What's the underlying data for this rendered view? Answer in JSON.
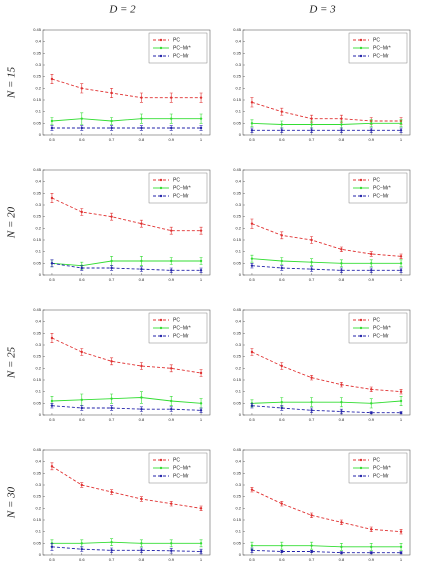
{
  "header": {
    "columns": [
      "D = 2",
      "D = 3"
    ],
    "rows": [
      "N = 15",
      "N = 20",
      "N = 25",
      "N = 30"
    ]
  },
  "chart_data": [
    {
      "type": "line",
      "legend": "upper right",
      "xlim": [
        0.47,
        1.03
      ],
      "ylim": [
        0,
        0.45
      ],
      "xticks": [
        0.5,
        0.6,
        0.7,
        0.8,
        0.9,
        1
      ],
      "yticks": [
        0,
        0.05,
        0.1,
        0.15,
        0.2,
        0.25,
        0.3,
        0.35,
        0.4,
        0.45
      ],
      "x": [
        0.5,
        0.6,
        0.7,
        0.8,
        0.9,
        1
      ],
      "series": [
        {
          "name": "PC",
          "color": "#e03030",
          "linestyle": "dashed",
          "values": [
            0.24,
            0.2,
            0.18,
            0.16,
            0.16,
            0.16
          ],
          "errors": [
            0.02,
            0.02,
            0.02,
            0.02,
            0.02,
            0.02
          ]
        },
        {
          "name": "PC−Mr*",
          "color": "#33dd33",
          "linestyle": "solid",
          "values": [
            0.06,
            0.07,
            0.06,
            0.07,
            0.07,
            0.07
          ],
          "errors": [
            0.015,
            0.025,
            0.015,
            0.02,
            0.02,
            0.02
          ]
        },
        {
          "name": "PC−Mr",
          "color": "#2222aa",
          "linestyle": "dashed",
          "values": [
            0.03,
            0.03,
            0.03,
            0.03,
            0.03,
            0.03
          ],
          "errors": [
            0.01,
            0.01,
            0.01,
            0.01,
            0.01,
            0.01
          ]
        }
      ]
    },
    {
      "type": "line",
      "legend": "upper right",
      "xlim": [
        0.47,
        1.03
      ],
      "ylim": [
        0,
        0.45
      ],
      "xticks": [
        0.5,
        0.6,
        0.7,
        0.8,
        0.9,
        1
      ],
      "yticks": [
        0,
        0.05,
        0.1,
        0.15,
        0.2,
        0.25,
        0.3,
        0.35,
        0.4,
        0.45
      ],
      "x": [
        0.5,
        0.6,
        0.7,
        0.8,
        0.9,
        1
      ],
      "series": [
        {
          "name": "PC",
          "color": "#e03030",
          "linestyle": "dashed",
          "values": [
            0.14,
            0.1,
            0.07,
            0.07,
            0.06,
            0.06
          ],
          "errors": [
            0.02,
            0.015,
            0.015,
            0.015,
            0.015,
            0.015
          ]
        },
        {
          "name": "PC−Mr*",
          "color": "#33dd33",
          "linestyle": "solid",
          "values": [
            0.05,
            0.045,
            0.045,
            0.045,
            0.05,
            0.05
          ],
          "errors": [
            0.015,
            0.015,
            0.015,
            0.015,
            0.015,
            0.015
          ]
        },
        {
          "name": "PC−Mr",
          "color": "#2222aa",
          "linestyle": "dashed",
          "values": [
            0.02,
            0.02,
            0.02,
            0.02,
            0.02,
            0.02
          ],
          "errors": [
            0.01,
            0.01,
            0.01,
            0.01,
            0.01,
            0.01
          ]
        }
      ]
    },
    {
      "type": "line",
      "legend": "upper right",
      "xlim": [
        0.47,
        1.03
      ],
      "ylim": [
        0,
        0.45
      ],
      "xticks": [
        0.5,
        0.6,
        0.7,
        0.8,
        0.9,
        1
      ],
      "yticks": [
        0,
        0.05,
        0.1,
        0.15,
        0.2,
        0.25,
        0.3,
        0.35,
        0.4,
        0.45
      ],
      "x": [
        0.5,
        0.6,
        0.7,
        0.8,
        0.9,
        1
      ],
      "series": [
        {
          "name": "PC",
          "color": "#e03030",
          "linestyle": "dashed",
          "values": [
            0.33,
            0.27,
            0.25,
            0.22,
            0.19,
            0.19
          ],
          "errors": [
            0.02,
            0.015,
            0.015,
            0.015,
            0.015,
            0.015
          ]
        },
        {
          "name": "PC−Mr*",
          "color": "#33dd33",
          "linestyle": "solid",
          "values": [
            0.05,
            0.04,
            0.06,
            0.06,
            0.06,
            0.06
          ],
          "errors": [
            0.015,
            0.015,
            0.02,
            0.02,
            0.015,
            0.015
          ]
        },
        {
          "name": "PC−Mr",
          "color": "#2222aa",
          "linestyle": "dashed",
          "values": [
            0.05,
            0.03,
            0.03,
            0.025,
            0.02,
            0.02
          ],
          "errors": [
            0.015,
            0.01,
            0.01,
            0.01,
            0.01,
            0.01
          ]
        }
      ]
    },
    {
      "type": "line",
      "legend": "upper right",
      "xlim": [
        0.47,
        1.03
      ],
      "ylim": [
        0,
        0.45
      ],
      "xticks": [
        0.5,
        0.6,
        0.7,
        0.8,
        0.9,
        1
      ],
      "yticks": [
        0,
        0.05,
        0.1,
        0.15,
        0.2,
        0.25,
        0.3,
        0.35,
        0.4,
        0.45
      ],
      "x": [
        0.5,
        0.6,
        0.7,
        0.8,
        0.9,
        1
      ],
      "series": [
        {
          "name": "PC",
          "color": "#e03030",
          "linestyle": "dashed",
          "values": [
            0.22,
            0.17,
            0.15,
            0.11,
            0.09,
            0.08
          ],
          "errors": [
            0.02,
            0.015,
            0.015,
            0.01,
            0.01,
            0.01
          ]
        },
        {
          "name": "PC−Mr*",
          "color": "#33dd33",
          "linestyle": "solid",
          "values": [
            0.07,
            0.06,
            0.055,
            0.05,
            0.05,
            0.05
          ],
          "errors": [
            0.015,
            0.015,
            0.015,
            0.015,
            0.015,
            0.015
          ]
        },
        {
          "name": "PC−Mr",
          "color": "#2222aa",
          "linestyle": "dashed",
          "values": [
            0.04,
            0.03,
            0.025,
            0.02,
            0.02,
            0.02
          ],
          "errors": [
            0.01,
            0.01,
            0.01,
            0.01,
            0.01,
            0.01
          ]
        }
      ]
    },
    {
      "type": "line",
      "legend": "upper right",
      "xlim": [
        0.47,
        1.03
      ],
      "ylim": [
        0,
        0.45
      ],
      "xticks": [
        0.5,
        0.6,
        0.7,
        0.8,
        0.9,
        1
      ],
      "yticks": [
        0,
        0.05,
        0.1,
        0.15,
        0.2,
        0.25,
        0.3,
        0.35,
        0.4,
        0.45
      ],
      "x": [
        0.5,
        0.6,
        0.7,
        0.8,
        0.9,
        1
      ],
      "series": [
        {
          "name": "PC",
          "color": "#e03030",
          "linestyle": "dashed",
          "values": [
            0.33,
            0.27,
            0.23,
            0.21,
            0.2,
            0.18
          ],
          "errors": [
            0.02,
            0.015,
            0.015,
            0.015,
            0.015,
            0.015
          ]
        },
        {
          "name": "PC−Mr*",
          "color": "#33dd33",
          "linestyle": "solid",
          "values": [
            0.06,
            0.065,
            0.07,
            0.075,
            0.06,
            0.05
          ],
          "errors": [
            0.02,
            0.025,
            0.02,
            0.025,
            0.02,
            0.02
          ]
        },
        {
          "name": "PC−Mr",
          "color": "#2222aa",
          "linestyle": "dashed",
          "values": [
            0.04,
            0.03,
            0.03,
            0.025,
            0.025,
            0.02
          ],
          "errors": [
            0.01,
            0.01,
            0.01,
            0.01,
            0.01,
            0.01
          ]
        }
      ]
    },
    {
      "type": "line",
      "legend": "upper right",
      "xlim": [
        0.47,
        1.03
      ],
      "ylim": [
        0,
        0.45
      ],
      "xticks": [
        0.5,
        0.6,
        0.7,
        0.8,
        0.9,
        1
      ],
      "yticks": [
        0,
        0.05,
        0.1,
        0.15,
        0.2,
        0.25,
        0.3,
        0.35,
        0.4,
        0.45
      ],
      "x": [
        0.5,
        0.6,
        0.7,
        0.8,
        0.9,
        1
      ],
      "series": [
        {
          "name": "PC",
          "color": "#e03030",
          "linestyle": "dashed",
          "values": [
            0.27,
            0.21,
            0.16,
            0.13,
            0.11,
            0.1
          ],
          "errors": [
            0.015,
            0.015,
            0.01,
            0.01,
            0.01,
            0.01
          ]
        },
        {
          "name": "PC−Mr*",
          "color": "#33dd33",
          "linestyle": "solid",
          "values": [
            0.05,
            0.055,
            0.055,
            0.055,
            0.05,
            0.06
          ],
          "errors": [
            0.015,
            0.02,
            0.02,
            0.02,
            0.02,
            0.02
          ]
        },
        {
          "name": "PC−Mr",
          "color": "#2222aa",
          "linestyle": "dashed",
          "values": [
            0.04,
            0.03,
            0.02,
            0.015,
            0.01,
            0.01
          ],
          "errors": [
            0.01,
            0.01,
            0.01,
            0.01,
            0.005,
            0.005
          ]
        }
      ]
    },
    {
      "type": "line",
      "legend": "upper right",
      "xlim": [
        0.47,
        1.03
      ],
      "ylim": [
        0,
        0.45
      ],
      "xticks": [
        0.5,
        0.6,
        0.7,
        0.8,
        0.9,
        1
      ],
      "yticks": [
        0,
        0.05,
        0.1,
        0.15,
        0.2,
        0.25,
        0.3,
        0.35,
        0.4,
        0.45
      ],
      "x": [
        0.5,
        0.6,
        0.7,
        0.8,
        0.9,
        1
      ],
      "series": [
        {
          "name": "PC",
          "color": "#e03030",
          "linestyle": "dashed",
          "values": [
            0.38,
            0.3,
            0.27,
            0.24,
            0.22,
            0.2
          ],
          "errors": [
            0.015,
            0.01,
            0.01,
            0.01,
            0.01,
            0.01
          ]
        },
        {
          "name": "PC−Mr*",
          "color": "#33dd33",
          "linestyle": "solid",
          "values": [
            0.05,
            0.05,
            0.055,
            0.05,
            0.05,
            0.05
          ],
          "errors": [
            0.015,
            0.015,
            0.015,
            0.015,
            0.015,
            0.015
          ]
        },
        {
          "name": "PC−Mr",
          "color": "#2222aa",
          "linestyle": "dashed",
          "values": [
            0.035,
            0.025,
            0.02,
            0.02,
            0.018,
            0.015
          ],
          "errors": [
            0.015,
            0.01,
            0.01,
            0.01,
            0.01,
            0.01
          ]
        }
      ]
    },
    {
      "type": "line",
      "legend": "upper right",
      "xlim": [
        0.47,
        1.03
      ],
      "ylim": [
        0,
        0.45
      ],
      "xticks": [
        0.5,
        0.6,
        0.7,
        0.8,
        0.9,
        1
      ],
      "yticks": [
        0,
        0.05,
        0.1,
        0.15,
        0.2,
        0.25,
        0.3,
        0.35,
        0.4,
        0.45
      ],
      "x": [
        0.5,
        0.6,
        0.7,
        0.8,
        0.9,
        1
      ],
      "series": [
        {
          "name": "PC",
          "color": "#e03030",
          "linestyle": "dashed",
          "values": [
            0.28,
            0.22,
            0.17,
            0.14,
            0.11,
            0.1
          ],
          "errors": [
            0.01,
            0.01,
            0.01,
            0.01,
            0.01,
            0.01
          ]
        },
        {
          "name": "PC−Mr*",
          "color": "#33dd33",
          "linestyle": "solid",
          "values": [
            0.04,
            0.04,
            0.04,
            0.035,
            0.035,
            0.035
          ],
          "errors": [
            0.015,
            0.015,
            0.015,
            0.015,
            0.015,
            0.015
          ]
        },
        {
          "name": "PC−Mr",
          "color": "#2222aa",
          "linestyle": "dashed",
          "values": [
            0.02,
            0.015,
            0.015,
            0.01,
            0.01,
            0.01
          ],
          "errors": [
            0.01,
            0.005,
            0.005,
            0.005,
            0.005,
            0.005
          ]
        }
      ]
    }
  ]
}
